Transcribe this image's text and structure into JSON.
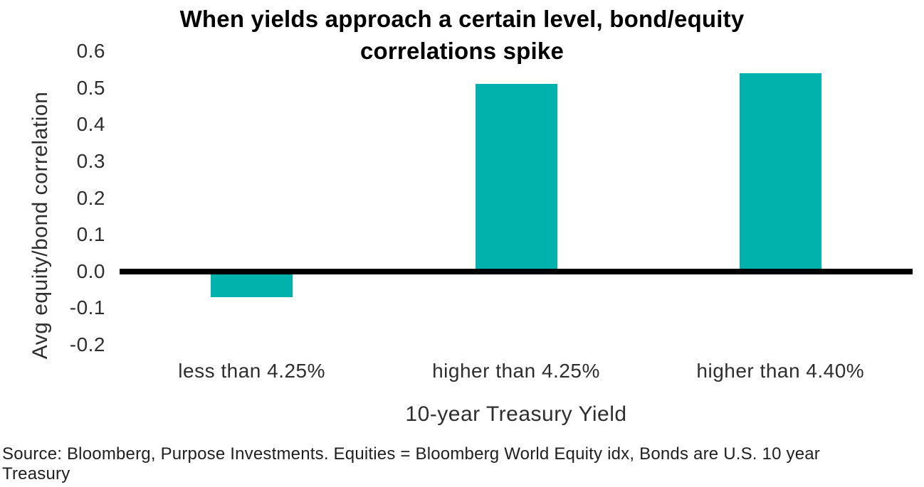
{
  "chart_data": {
    "type": "bar",
    "title": "When yields approach a certain level, bond/equity\ncorrelations spike",
    "categories": [
      "less than 4.25%",
      "higher than 4.25%",
      "higher than 4.40%"
    ],
    "values": [
      -0.07,
      0.51,
      0.54
    ],
    "xlabel": "10-year Treasury Yield",
    "ylabel": "Avg equity/bond correlation",
    "ylim": [
      -0.2,
      0.6
    ],
    "yticks": [
      "0.6",
      "0.5",
      "0.4",
      "0.3",
      "0.2",
      "0.1",
      "0.0",
      "-0.1",
      "-0.2"
    ],
    "ytick_values": [
      0.6,
      0.5,
      0.4,
      0.3,
      0.2,
      0.1,
      0,
      -0.1,
      -0.2
    ],
    "grid": false,
    "legend": "none",
    "bar_color": "#00b2ab",
    "zero_line_color": "#000000"
  },
  "source": {
    "text": "Source: Bloomberg, Purpose Investments. Equities = Bloomberg World Equity idx, Bonds are U.S. 10 year\nTreasury"
  }
}
